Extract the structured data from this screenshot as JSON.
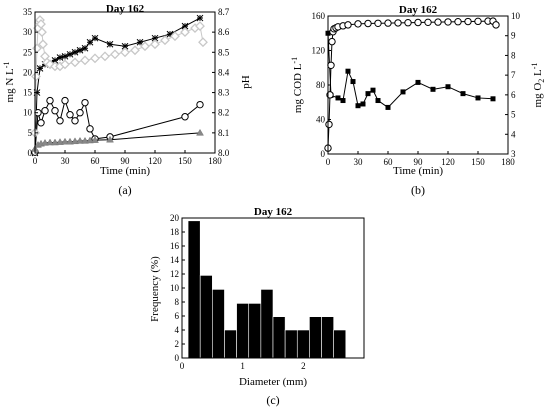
{
  "chart_data": [
    {
      "panel": "a",
      "caption": "(a)",
      "title": "Day 162",
      "type": "line",
      "xlabel": "Time (min)",
      "ylabel_left": "mg N L",
      "ylabel_left_sup": "-1",
      "ylabel_right": "pH",
      "xlim": [
        0,
        180
      ],
      "xticks": [
        "0",
        "30",
        "60",
        "90",
        "120",
        "150",
        "180"
      ],
      "ylim_left": [
        0,
        35
      ],
      "yticks_left": [
        "0",
        "5",
        "10",
        "15",
        "20",
        "25",
        "30",
        "35"
      ],
      "ylim_right": [
        8.0,
        8.7
      ],
      "yticks_right": [
        "8.0",
        "8.1",
        "8.2",
        "8.3",
        "8.4",
        "8.5",
        "8.6",
        "8.7"
      ],
      "series": [
        {
          "marker": "star",
          "axis": "left",
          "color": "#000000",
          "x": [
            0,
            2,
            5,
            10,
            15,
            20,
            25,
            30,
            35,
            40,
            45,
            50,
            55,
            60,
            75,
            90,
            105,
            120,
            135,
            150,
            165
          ],
          "y": [
            0.0,
            15.0,
            21.0,
            22.0,
            22.3,
            23.0,
            23.7,
            24.0,
            24.5,
            25.0,
            25.5,
            26.0,
            27.5,
            28.5,
            27.0,
            26.5,
            27.5,
            28.5,
            29.5,
            31.5,
            33.5
          ]
        },
        {
          "marker": "circle-open",
          "axis": "left",
          "color": "#000000",
          "x": [
            0,
            3,
            6,
            10,
            15,
            20,
            25,
            30,
            35,
            40,
            45,
            50,
            55,
            60,
            75,
            150,
            165
          ],
          "y": [
            0.2,
            10.0,
            7.5,
            10.5,
            13.0,
            10.5,
            8.0,
            13.0,
            9.5,
            8.0,
            10.0,
            12.5,
            6.0,
            3.5,
            4.0,
            9.0,
            12.0
          ]
        },
        {
          "marker": "triangle-filled",
          "axis": "left",
          "color": "#888888",
          "x": [
            0,
            3,
            6,
            10,
            15,
            20,
            25,
            30,
            35,
            40,
            45,
            50,
            55,
            60,
            75,
            165
          ],
          "y": [
            1.0,
            2.0,
            2.3,
            2.5,
            2.6,
            2.6,
            2.7,
            2.8,
            2.8,
            2.9,
            3.0,
            3.0,
            3.1,
            3.2,
            3.3,
            5.0
          ]
        },
        {
          "marker": "diamond-open",
          "axis": "right",
          "color": "#c8c8c8",
          "x": [
            0,
            1,
            2,
            3,
            4,
            5,
            6,
            7,
            8,
            10,
            12,
            15,
            20,
            25,
            30,
            40,
            50,
            60,
            70,
            80,
            90,
            100,
            110,
            120,
            130,
            140,
            150,
            160,
            165,
            168
          ],
          "y": [
            8.1,
            8.38,
            8.52,
            8.62,
            8.65,
            8.66,
            8.64,
            8.6,
            8.54,
            8.48,
            8.45,
            8.44,
            8.43,
            8.43,
            8.44,
            8.45,
            8.46,
            8.47,
            8.48,
            8.49,
            8.5,
            8.51,
            8.53,
            8.54,
            8.56,
            8.58,
            8.6,
            8.62,
            8.63,
            8.55
          ]
        }
      ]
    },
    {
      "panel": "b",
      "caption": "(b)",
      "title": "Day 162",
      "type": "line",
      "xlabel": "Time (min)",
      "ylabel_left": "mg COD L",
      "ylabel_left_sup": "-1",
      "ylabel_right": "mg O",
      "ylabel_right_sub": "2",
      "ylabel_right_suffix": " L",
      "ylabel_right_sup": "-1",
      "xlim": [
        0,
        180
      ],
      "xticks": [
        "0",
        "30",
        "60",
        "90",
        "120",
        "150",
        "180"
      ],
      "ylim_left": [
        0,
        160
      ],
      "yticks_left": [
        "0",
        "40",
        "80",
        "120",
        "160"
      ],
      "ylim_right": [
        3,
        10
      ],
      "yticks_right": [
        "3",
        "4",
        "5",
        "6",
        "7",
        "8",
        "9",
        "10"
      ],
      "series": [
        {
          "marker": "square-filled",
          "axis": "left",
          "color": "#000000",
          "x": [
            0,
            3,
            10,
            15,
            20,
            25,
            30,
            35,
            40,
            45,
            50,
            60,
            75,
            90,
            105,
            120,
            135,
            150,
            165
          ],
          "y": [
            140,
            68,
            65,
            62,
            96,
            84,
            56,
            58,
            70,
            74,
            62,
            54,
            72,
            83,
            75,
            78,
            70,
            65,
            64
          ]
        },
        {
          "marker": "circle-open",
          "axis": "right",
          "color": "#000000",
          "x": [
            0,
            1,
            2,
            3,
            4,
            5,
            6,
            8,
            10,
            15,
            20,
            30,
            40,
            50,
            60,
            70,
            80,
            90,
            100,
            110,
            120,
            130,
            140,
            150,
            160,
            165,
            168
          ],
          "y": [
            3.3,
            4.5,
            6.0,
            7.5,
            8.7,
            9.2,
            9.35,
            9.4,
            9.45,
            9.5,
            9.55,
            9.6,
            9.62,
            9.63,
            9.64,
            9.65,
            9.66,
            9.67,
            9.68,
            9.69,
            9.7,
            9.71,
            9.72,
            9.73,
            9.74,
            9.74,
            9.55
          ]
        }
      ]
    },
    {
      "panel": "c",
      "caption": "(c)",
      "title": "Day 162",
      "type": "bar",
      "xlabel": "Diameter (mm)",
      "ylabel": "Frequency (%)",
      "xlim": [
        0,
        3
      ],
      "xticks": [
        "0",
        "1",
        "2"
      ],
      "ylim": [
        0,
        20
      ],
      "yticks": [
        "0",
        "2",
        "4",
        "6",
        "8",
        "10",
        "12",
        "14",
        "16",
        "18",
        "20"
      ],
      "bin_width": 0.2,
      "bin_starts": [
        0.1,
        0.3,
        0.5,
        0.7,
        0.9,
        1.1,
        1.3,
        1.5,
        1.7,
        1.9,
        2.1,
        2.3,
        2.5
      ],
      "values": [
        19.6,
        11.8,
        9.8,
        4.0,
        7.8,
        7.8,
        9.8,
        5.9,
        4.0,
        4.0,
        5.9,
        5.9,
        4.0
      ]
    }
  ]
}
